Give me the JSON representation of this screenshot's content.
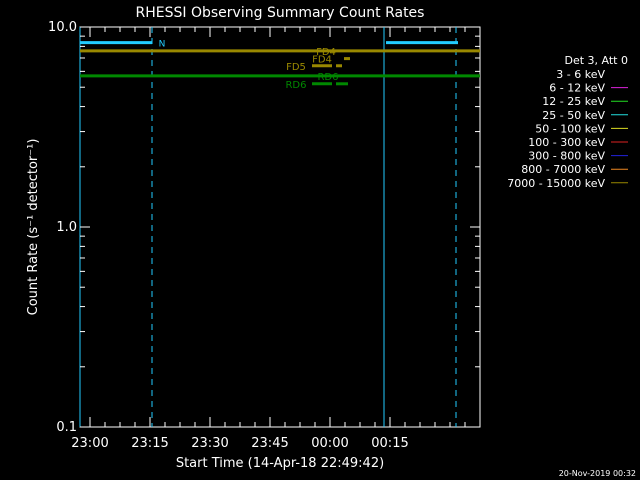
{
  "chart_data": {
    "type": "line",
    "title": "RHESSI Observing Summary Count Rates",
    "xlabel": "Start Time (14-Apr-18 22:49:42)",
    "ylabel": "Count Rate (s⁻¹ detector⁻¹)",
    "yscale": "log",
    "ylim": [
      0.1,
      10.0
    ],
    "xlim": [
      -2,
      398
    ],
    "x_ticks": [
      {
        "m": 8,
        "label": "23:00"
      },
      {
        "m": 68,
        "label": "23:15"
      },
      {
        "m": 128,
        "label": "23:30"
      },
      {
        "m": 188,
        "label": "23:45"
      },
      {
        "m": 248,
        "label": "00:00"
      },
      {
        "m": 308,
        "label": "00:15"
      }
    ],
    "y_ticks": [
      {
        "v": 0.1,
        "label": "0.1"
      },
      {
        "v": 1.0,
        "label": "1.0"
      },
      {
        "v": 10.0,
        "label": "10.0"
      }
    ],
    "legend_title": "Det 3, Att 0",
    "legend": [
      {
        "label": "3 - 6 keV",
        "color": "#000000"
      },
      {
        "label": "6 - 12 keV",
        "color": "#dd22dd"
      },
      {
        "label": "12 - 25 keV",
        "color": "#22dd22"
      },
      {
        "label": "25 - 50 keV",
        "color": "#22dddd"
      },
      {
        "label": "50 - 100 keV",
        "color": "#dddd22"
      },
      {
        "label": "100 - 300 keV",
        "color": "#dd2222"
      },
      {
        "label": "300 - 800 keV",
        "color": "#2222dd"
      },
      {
        "label": "800 - 7000 keV",
        "color": "#ee8822"
      },
      {
        "label": "7000 - 15000 keV",
        "color": "#998800"
      }
    ],
    "series": [
      {
        "name": "7000 - 15000 keV",
        "color": "#998800",
        "y": 7.6,
        "x": [
          -2,
          398
        ]
      },
      {
        "name": "green",
        "color": "#008800",
        "y": 5.7,
        "x": [
          -2,
          398
        ]
      }
    ],
    "flag_bars": [
      {
        "label": "N",
        "color": "#22ccff",
        "y": 8.35,
        "segments": [
          [
            -2,
            70
          ],
          [
            304,
            376
          ]
        ],
        "label_m": 80
      },
      {
        "label": "FD4",
        "color": "#998800",
        "y": 7.6,
        "segments": [],
        "label_m": 244
      },
      {
        "label": "FD4",
        "color": "#998800",
        "y": 6.95,
        "segments": [
          [
            262,
            268
          ]
        ],
        "label_m": 240
      },
      {
        "label": "FD5",
        "color": "#998800",
        "y": 6.4,
        "segments": [
          [
            230,
            250
          ],
          [
            254,
            260
          ]
        ],
        "label_m": 214
      },
      {
        "label": "RD6",
        "color": "#008800",
        "y": 5.7,
        "segments": [],
        "label_m": 246
      },
      {
        "label": "RD6",
        "color": "#008800",
        "y": 5.2,
        "segments": [
          [
            230,
            250
          ],
          [
            254,
            266
          ]
        ],
        "label_m": 214
      }
    ],
    "vlines": [
      {
        "m": -2,
        "color": "#22ccff",
        "style": "solid"
      },
      {
        "m": 70,
        "color": "#22ccff",
        "style": "dashed"
      },
      {
        "m": 302,
        "color": "#22ccff",
        "style": "solid"
      },
      {
        "m": 374,
        "color": "#22ccff",
        "style": "dashed"
      }
    ],
    "footer": "20-Nov-2019 00:32"
  }
}
